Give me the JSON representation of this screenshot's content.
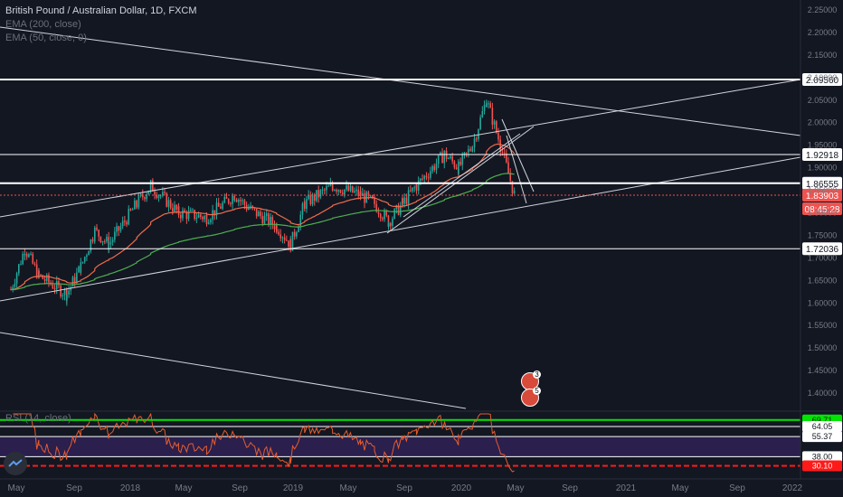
{
  "legend": {
    "title": "British Pound / Australian Dollar, 1D, FXCM",
    "ema200": "EMA (200, close)",
    "ema50": "EMA (50, close, 0)"
  },
  "rsi_legend": "RSI (14, close)",
  "current_time_label": "08:45:28",
  "colors": {
    "background": "#131722",
    "up": "#26a69a",
    "down": "#ef5350",
    "ema200": "#4caf50",
    "ema50": "#ef6c4d",
    "rsi_line": "#e65c2e",
    "rsi_band": "#2a1f4d",
    "level_green": "#00e600",
    "level_red": "#ff1a1a"
  },
  "chart_data": {
    "type": "candlestick",
    "price_axis": {
      "ticks": [
        "2.25000",
        "2.20000",
        "2.15000",
        "2.10000",
        "2.05000",
        "2.00000",
        "1.95000",
        "1.90000",
        "1.85000",
        "1.80000",
        "1.75000",
        "1.70000",
        "1.65000",
        "1.60000",
        "1.55000",
        "1.50000",
        "1.45000",
        "1.40000"
      ],
      "range": [
        1.37,
        2.26
      ]
    },
    "time_axis": {
      "labels": [
        "May",
        "Sep",
        "2018",
        "May",
        "Sep",
        "2019",
        "May",
        "Sep",
        "2020",
        "May",
        "Sep",
        "2021",
        "May",
        "Sep",
        "2022"
      ]
    },
    "horizontal_levels": [
      {
        "label": "2.09560",
        "value": 2.0956
      },
      {
        "label": "1.92918",
        "value": 1.92918
      },
      {
        "label": "1.86555",
        "value": 1.86555
      },
      {
        "label": "1.72036",
        "value": 1.72036
      }
    ],
    "last_price": {
      "label": "1.83903",
      "value": 1.83903
    },
    "price_path": [
      {
        "date": "2017-05",
        "close": 1.63
      },
      {
        "date": "2017-06",
        "close": 1.72
      },
      {
        "date": "2017-07",
        "close": 1.66
      },
      {
        "date": "2017-09",
        "close": 1.62
      },
      {
        "date": "2017-10",
        "close": 1.68
      },
      {
        "date": "2017-11",
        "close": 1.76
      },
      {
        "date": "2017-12",
        "close": 1.73
      },
      {
        "date": "2018-02",
        "close": 1.82
      },
      {
        "date": "2018-03",
        "close": 1.86
      },
      {
        "date": "2018-05",
        "close": 1.8
      },
      {
        "date": "2018-07",
        "close": 1.79
      },
      {
        "date": "2018-09",
        "close": 1.84
      },
      {
        "date": "2018-10",
        "close": 1.81
      },
      {
        "date": "2018-12",
        "close": 1.77
      },
      {
        "date": "2019-01",
        "close": 1.73
      },
      {
        "date": "2019-02",
        "close": 1.82
      },
      {
        "date": "2019-04",
        "close": 1.86
      },
      {
        "date": "2019-06",
        "close": 1.84
      },
      {
        "date": "2019-07",
        "close": 1.82
      },
      {
        "date": "2019-08",
        "close": 1.78
      },
      {
        "date": "2019-09",
        "close": 1.82
      },
      {
        "date": "2019-10",
        "close": 1.86
      },
      {
        "date": "2019-12",
        "close": 1.93
      },
      {
        "date": "2020-01",
        "close": 1.9
      },
      {
        "date": "2020-02",
        "close": 1.95
      },
      {
        "date": "2020-03",
        "close": 2.05
      },
      {
        "date": "2020-04",
        "close": 1.95
      },
      {
        "date": "2020-05",
        "close": 1.84
      }
    ],
    "rsi_levels": [
      {
        "label": "69.71",
        "value": 69.71
      },
      {
        "label": "64.05",
        "value": 64.05
      },
      {
        "label": "55.37",
        "value": 55.37
      },
      {
        "label": "38.00",
        "value": 38.0
      },
      {
        "label": "30.10",
        "value": 30.1
      }
    ]
  },
  "events": [
    {
      "label": "3"
    },
    {
      "label": "5"
    }
  ]
}
